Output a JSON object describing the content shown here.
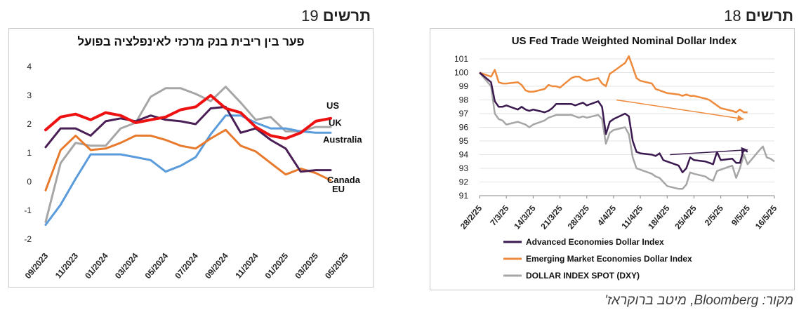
{
  "figures": {
    "fig19": {
      "word": "תרשים",
      "number": "19"
    },
    "fig18": {
      "word": "תרשים",
      "number": "18"
    }
  },
  "source": "מקור: Bloomberg, מיטב ברוקראז'",
  "colors": {
    "US": "#ee1111",
    "UK": "#4a1f55",
    "Australia": "#5a9bdc",
    "Canada": "#e87a2e",
    "EU": "#a6a6a6",
    "advanced": "#3b1a4f",
    "emerging": "#ee8a3c",
    "dxy": "#a6a6a6"
  },
  "chart_data": [
    {
      "type": "line",
      "title": "פער בין ריבית בנק מרכזי לאינפלציה בפועל",
      "xlabel": "",
      "ylabel": "",
      "ylim": [
        -2,
        4
      ],
      "yticks": [
        "-2",
        "-1",
        "0",
        "1",
        "2",
        "3",
        "4"
      ],
      "x_tick_labels": [
        "09/2023",
        "11/2023",
        "01/2024",
        "03/2024",
        "05/2024",
        "07/2024",
        "09/2024",
        "11/2024",
        "01/2025",
        "03/2025",
        "05/2025"
      ],
      "x": [
        "09/2023",
        "10/2023",
        "11/2023",
        "12/2023",
        "01/2024",
        "02/2024",
        "03/2024",
        "04/2024",
        "05/2024",
        "06/2024",
        "07/2024",
        "08/2024",
        "09/2024",
        "10/2024",
        "11/2024",
        "12/2024",
        "01/2025",
        "02/2025",
        "03/2025",
        "04/2025"
      ],
      "series": [
        {
          "name": "US",
          "values": [
            1.8,
            2.25,
            2.35,
            2.15,
            2.4,
            2.3,
            2.05,
            2.15,
            2.25,
            2.5,
            2.6,
            3.0,
            2.55,
            2.4,
            1.9,
            1.6,
            1.5,
            1.7,
            2.1,
            2.2
          ]
        },
        {
          "name": "UK",
          "values": [
            1.2,
            1.85,
            1.85,
            1.6,
            2.1,
            2.2,
            2.1,
            2.3,
            2.15,
            2.1,
            2.0,
            2.55,
            2.6,
            1.7,
            1.85,
            1.45,
            1.15,
            0.35,
            0.4,
            0.4
          ]
        },
        {
          "name": "Australia",
          "values": [
            -1.5,
            -0.8,
            0.1,
            0.95,
            0.95,
            0.95,
            0.85,
            0.75,
            0.35,
            0.55,
            0.85,
            1.65,
            2.3,
            2.3,
            2.05,
            1.85,
            1.85,
            1.75,
            1.7,
            1.7
          ]
        },
        {
          "name": "Canada",
          "values": [
            -0.3,
            1.1,
            1.6,
            1.1,
            1.15,
            1.35,
            1.6,
            1.6,
            1.45,
            1.25,
            1.15,
            1.5,
            1.8,
            1.25,
            1.05,
            0.65,
            0.25,
            0.45,
            0.3,
            0.05
          ]
        },
        {
          "name": "EU",
          "values": [
            -1.4,
            0.65,
            1.35,
            1.25,
            1.25,
            1.85,
            2.05,
            2.95,
            3.25,
            3.25,
            3.05,
            2.8,
            3.3,
            2.75,
            2.15,
            2.25,
            1.75,
            1.75,
            1.9,
            1.9
          ]
        }
      ],
      "labels": {
        "US": "US",
        "UK": "UK",
        "Australia": "Australia",
        "Canada": "Canada",
        "EU": "EU"
      }
    },
    {
      "type": "line",
      "title": "US Fed Trade Weighted Nominal  Dollar Index",
      "xlabel": "",
      "ylabel": "",
      "ylim": [
        91,
        101
      ],
      "yticks": [
        "91",
        "92",
        "93",
        "94",
        "95",
        "96",
        "97",
        "98",
        "99",
        "100",
        "101"
      ],
      "x_tick_labels": [
        "28/2/25",
        "7/3/25",
        "14/3/25",
        "21/3/25",
        "28/3/25",
        "4/4/25",
        "11/4/25",
        "18/4/25",
        "25/4/25",
        "2/5/25",
        "9/5/25",
        "16/5/25"
      ],
      "x_range": [
        "28/2/25",
        "16/5/25"
      ],
      "series": [
        {
          "name": "Advanced  Economies Dollar Index",
          "x": [
            "28/2/25",
            "3/3/25",
            "4/3/25",
            "5/3/25",
            "6/3/25",
            "7/3/25",
            "10/3/25",
            "11/3/25",
            "12/3/25",
            "13/3/25",
            "14/3/25",
            "17/3/25",
            "18/3/25",
            "19/3/25",
            "20/3/25",
            "21/3/25",
            "24/3/25",
            "25/3/25",
            "26/3/25",
            "27/3/25",
            "28/3/25",
            "31/3/25",
            "1/4/25",
            "2/4/25",
            "3/4/25",
            "4/4/25",
            "7/4/25",
            "8/4/25",
            "9/4/25",
            "10/4/25",
            "11/4/25",
            "14/4/25",
            "15/4/25",
            "16/4/25",
            "17/4/25",
            "18/4/25",
            "21/4/25",
            "22/4/25",
            "23/4/25",
            "24/4/25",
            "25/4/25",
            "28/4/25",
            "29/4/25",
            "30/4/25",
            "1/5/25",
            "2/5/25",
            "5/5/25",
            "6/5/25",
            "7/5/25",
            "8/5/25",
            "9/5/25"
          ],
          "values": [
            100.0,
            99.3,
            97.9,
            97.5,
            97.5,
            97.6,
            97.3,
            97.5,
            97.3,
            97.2,
            97.3,
            97.1,
            97.2,
            97.4,
            97.7,
            97.7,
            97.7,
            97.6,
            97.7,
            97.8,
            97.6,
            97.9,
            97.5,
            95.5,
            96.4,
            96.6,
            97.0,
            96.8,
            95.0,
            94.2,
            94.1,
            94.0,
            93.9,
            94.1,
            93.6,
            93.5,
            93.2,
            92.7,
            93.0,
            93.8,
            93.6,
            93.5,
            93.4,
            93.3,
            94.2,
            93.6,
            93.7,
            93.4,
            93.4,
            94.4,
            94.2
          ]
        },
        {
          "name": "Emerging Market Economies Dollar Index",
          "x": [
            "28/2/25",
            "3/3/25",
            "4/3/25",
            "5/3/25",
            "6/3/25",
            "7/3/25",
            "10/3/25",
            "11/3/25",
            "12/3/25",
            "13/3/25",
            "14/3/25",
            "17/3/25",
            "18/3/25",
            "19/3/25",
            "20/3/25",
            "21/3/25",
            "24/3/25",
            "25/3/25",
            "26/3/25",
            "27/3/25",
            "28/3/25",
            "31/3/25",
            "1/4/25",
            "2/4/25",
            "3/4/25",
            "4/4/25",
            "7/4/25",
            "8/4/25",
            "9/4/25",
            "10/4/25",
            "11/4/25",
            "14/4/25",
            "15/4/25",
            "16/4/25",
            "17/4/25",
            "18/4/25",
            "21/4/25",
            "22/4/25",
            "23/4/25",
            "24/4/25",
            "25/4/25",
            "28/4/25",
            "29/4/25",
            "30/4/25",
            "1/5/25",
            "2/5/25",
            "5/5/25",
            "6/5/25",
            "7/5/25",
            "8/5/25",
            "9/5/25"
          ],
          "values": [
            100.0,
            99.7,
            100.2,
            99.3,
            99.2,
            99.2,
            99.3,
            99.1,
            98.7,
            98.6,
            98.6,
            98.8,
            99.1,
            99.0,
            99.0,
            98.9,
            99.6,
            99.7,
            99.7,
            99.5,
            99.4,
            99.6,
            99.2,
            99.0,
            99.9,
            100.1,
            100.7,
            101.2,
            100.4,
            99.6,
            99.4,
            99.2,
            98.8,
            98.7,
            98.6,
            98.5,
            98.4,
            98.3,
            98.4,
            98.3,
            98.3,
            98.1,
            98.0,
            97.8,
            97.6,
            97.4,
            97.2,
            97.1,
            97.3,
            97.1,
            97.1
          ]
        },
        {
          "name": "DOLLAR INDEX SPOT (DXY)",
          "x": [
            "28/2/25",
            "3/3/25",
            "4/3/25",
            "5/3/25",
            "6/3/25",
            "7/3/25",
            "10/3/25",
            "11/3/25",
            "12/3/25",
            "13/3/25",
            "14/3/25",
            "17/3/25",
            "18/3/25",
            "19/3/25",
            "20/3/25",
            "21/3/25",
            "24/3/25",
            "25/3/25",
            "26/3/25",
            "27/3/25",
            "28/3/25",
            "31/3/25",
            "1/4/25",
            "2/4/25",
            "3/4/25",
            "4/4/25",
            "7/4/25",
            "8/4/25",
            "9/4/25",
            "10/4/25",
            "11/4/25",
            "14/4/25",
            "15/4/25",
            "16/4/25",
            "17/4/25",
            "18/4/25",
            "21/4/25",
            "22/4/25",
            "23/4/25",
            "24/4/25",
            "25/4/25",
            "28/4/25",
            "29/4/25",
            "30/4/25",
            "1/5/25",
            "2/5/25",
            "5/5/25",
            "6/5/25",
            "7/5/25",
            "8/5/25",
            "9/5/25",
            "12/5/25",
            "13/5/25",
            "14/5/25",
            "15/5/25",
            "16/5/25"
          ],
          "values": [
            100.0,
            99.0,
            97.0,
            96.6,
            96.5,
            96.2,
            96.4,
            96.3,
            96.2,
            96.0,
            96.2,
            96.5,
            96.7,
            96.8,
            96.9,
            96.9,
            96.9,
            96.8,
            96.7,
            96.8,
            96.7,
            96.9,
            96.6,
            94.8,
            95.6,
            95.8,
            96.0,
            95.5,
            93.8,
            93.0,
            92.9,
            92.6,
            92.4,
            92.3,
            92.0,
            91.7,
            91.5,
            91.5,
            91.8,
            92.7,
            92.6,
            92.4,
            92.2,
            92.1,
            92.8,
            92.9,
            93.2,
            92.3,
            93.0,
            94.0,
            93.3,
            94.3,
            94.6,
            93.8,
            93.7,
            93.5
          ]
        }
      ],
      "legend_position": "bottom-left"
    }
  ]
}
